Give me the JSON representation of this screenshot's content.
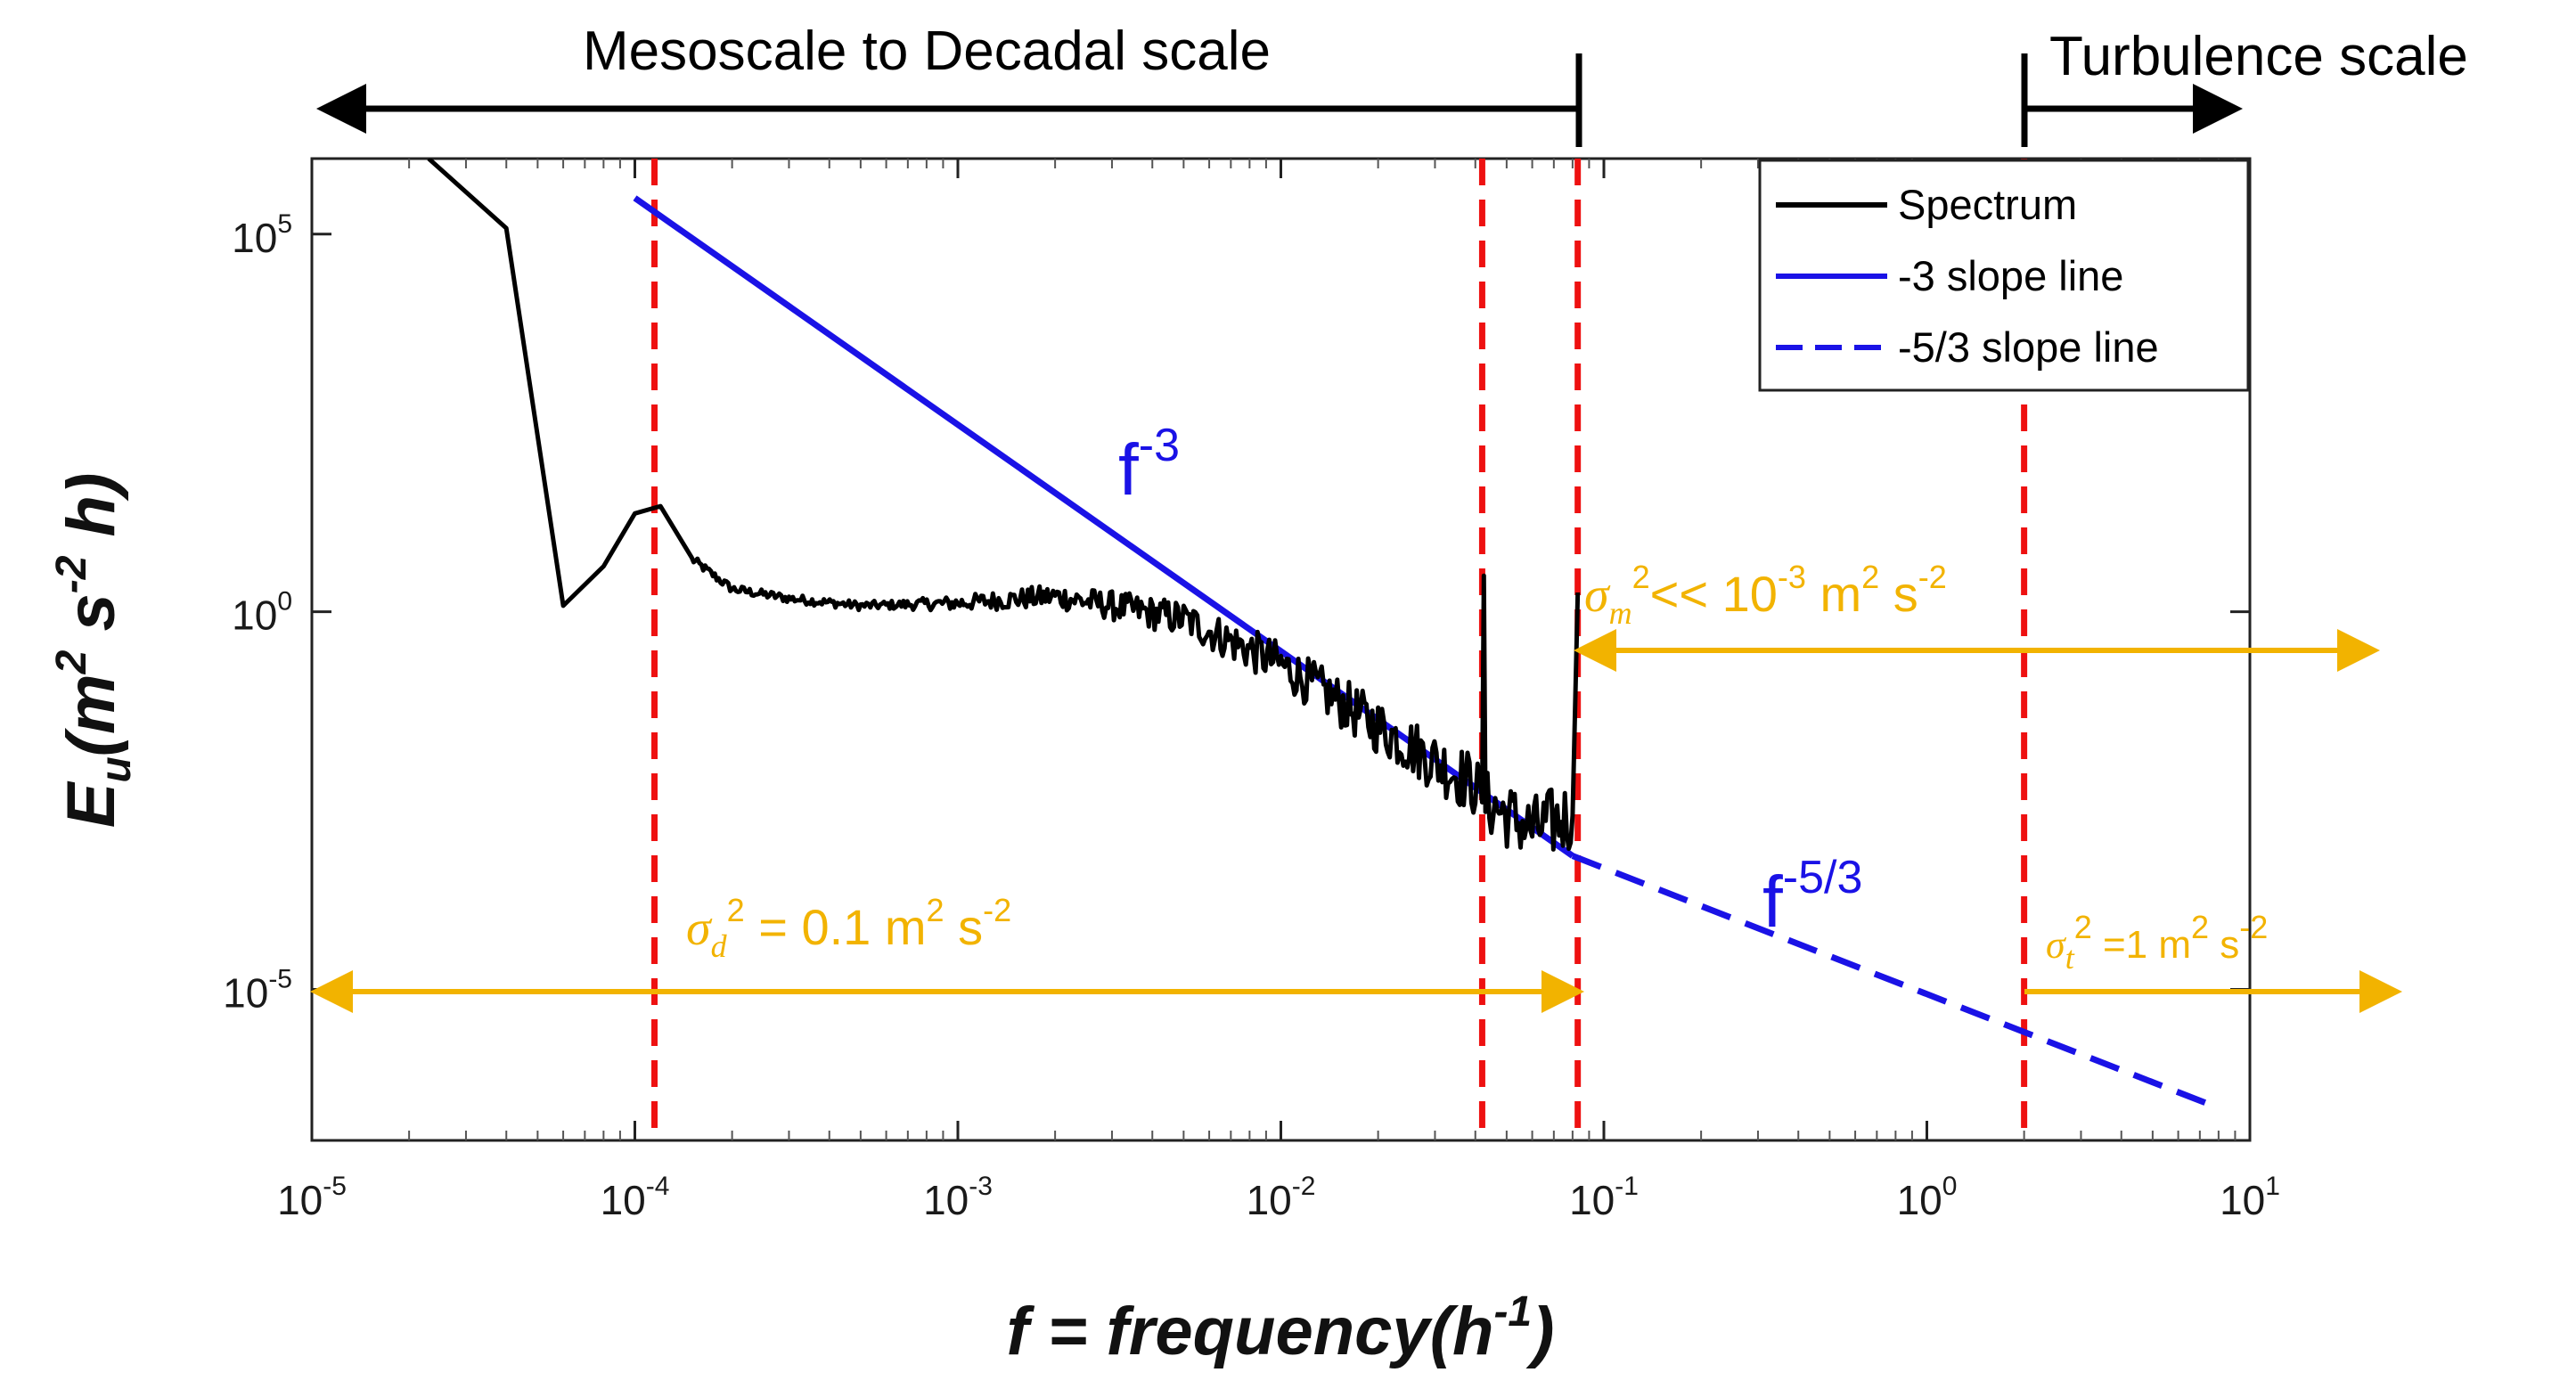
{
  "chart_data": {
    "type": "line",
    "x_scale": "log",
    "y_scale": "log",
    "xlim": [
      1e-05,
      10
    ],
    "ylim": [
      1e-07,
      1000000
    ],
    "x_ticks": [
      1e-05,
      0.0001,
      0.001,
      0.01,
      0.1,
      1,
      10
    ],
    "x_tick_labels": [
      {
        "base": "10",
        "exp": "-5"
      },
      {
        "base": "10",
        "exp": "-4"
      },
      {
        "base": "10",
        "exp": "-3"
      },
      {
        "base": "10",
        "exp": "-2"
      },
      {
        "base": "10",
        "exp": "-1"
      },
      {
        "base": "10",
        "exp": "0"
      },
      {
        "base": "10",
        "exp": "1"
      }
    ],
    "y_ticks": [
      1e-05,
      1,
      100000
    ],
    "y_tick_labels": [
      {
        "base": "10",
        "exp": "-5"
      },
      {
        "base": "10",
        "exp": "0"
      },
      {
        "base": "10",
        "exp": "5"
      }
    ],
    "xlabel": {
      "main": "f = frequency(h",
      "sup": "-1",
      "end": ")"
    },
    "ylabel": {
      "main": "E",
      "sub": "u",
      "units": "(m",
      "sup1": "2",
      "mid": " s",
      "sup2": "-2",
      "end": " h)"
    },
    "series": [
      {
        "name": "Spectrum",
        "color": "#000000",
        "style": "solid",
        "points": [
          [
            2.3e-05,
            1000000
          ],
          [
            4e-05,
            120000
          ],
          [
            6e-05,
            1.2
          ],
          [
            8e-05,
            4
          ],
          [
            0.0001,
            20
          ],
          [
            0.00012,
            25
          ],
          [
            0.00015,
            5
          ],
          [
            0.0002,
            2
          ],
          [
            0.0003,
            1.5
          ],
          [
            0.0005,
            1.2
          ],
          [
            0.001,
            1.3
          ],
          [
            0.002,
            1.6
          ],
          [
            0.003,
            1.2
          ],
          [
            0.005,
            0.8
          ],
          [
            0.01,
            0.2
          ],
          [
            0.02,
            0.03
          ],
          [
            0.04,
            0.005
          ],
          [
            0.042,
            0.003
          ],
          [
            0.0425,
            3
          ],
          [
            0.043,
            0.003
          ],
          [
            0.06,
            0.0013
          ],
          [
            0.08,
            0.002
          ],
          [
            0.083,
            1.8
          ]
        ]
      },
      {
        "name": "-3 slope line",
        "color": "#1a12e6",
        "style": "solid",
        "points": [
          [
            0.0001,
            300000
          ],
          [
            0.08,
            0.0005859
          ]
        ]
      },
      {
        "name": "-5/3 slope line",
        "color": "#1a12e6",
        "style": "dashed",
        "points": [
          [
            0.08,
            0.0005859
          ],
          [
            7.5,
            3e-07
          ]
        ]
      }
    ],
    "vertical_lines": [
      {
        "x": 0.000115,
        "color": "#ee1111",
        "style": "dashed"
      },
      {
        "x": 0.042,
        "color": "#ee1111",
        "style": "dashed"
      },
      {
        "x": 0.083,
        "color": "#ee1111",
        "style": "dashed"
      },
      {
        "x": 2.0,
        "color": "#ee1111",
        "style": "dashed"
      }
    ],
    "legend": {
      "position": "top-right",
      "entries": [
        {
          "label": "Spectrum",
          "color": "#000000",
          "style": "solid"
        },
        {
          "label": "-3 slope line",
          "color": "#1a12e6",
          "style": "solid"
        },
        {
          "label": "-5/3 slope line",
          "color": "#1a12e6",
          "style": "dashed"
        }
      ]
    },
    "annotations": {
      "mesoscale": "Mesoscale to Decadal scale",
      "turbulence": "Turbulence scale",
      "f3": {
        "base": "f",
        "exp": "-3"
      },
      "f53": {
        "base": "f",
        "exp": "-5/3"
      },
      "sigma_m": {
        "sym": "σ",
        "sub": "m",
        "sup": "2",
        "rel": "<< 10",
        "relexp": "-3",
        "unit": "  m",
        "unitsup": "2",
        "unit2": " s",
        "unit2sup": "-2"
      },
      "sigma_d": {
        "sym": "σ",
        "sub": "d",
        "sup": "2",
        "rel": " = 0.1 m",
        "unitsup": "2",
        "unit2": " s",
        "unit2sup": "-2"
      },
      "sigma_t": {
        "sym": "σ",
        "sub": "t",
        "sup": "2",
        "rel": " =1 m",
        "unitsup": "2",
        "unit2": " s",
        "unit2sup": "-2"
      }
    },
    "colors": {
      "spectrum": "#000000",
      "slope": "#1a12e6",
      "marker": "#ee1111",
      "variance": "#f2b300"
    }
  }
}
